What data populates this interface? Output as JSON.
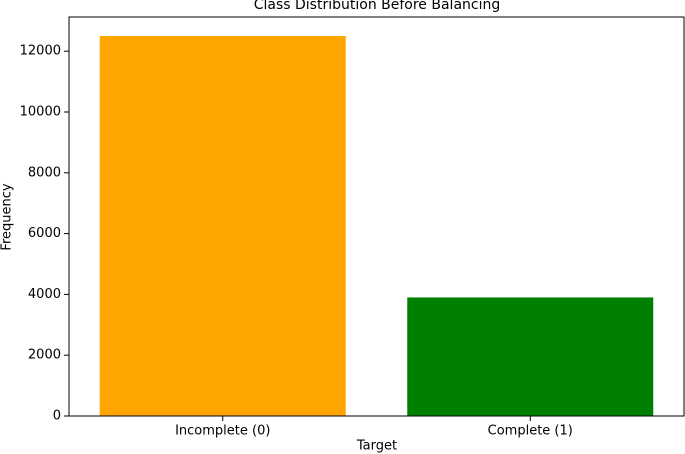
{
  "chart_data": {
    "type": "bar",
    "title": "Class Distribution Before Balancing",
    "x_label": "Target",
    "y_label": "Frequency",
    "categories": [
      "Incomplete (0)",
      "Complete (1)"
    ],
    "values": [
      12500,
      3900
    ],
    "colors": [
      "#ffa500",
      "#008000"
    ],
    "ylim": [
      0,
      13125
    ],
    "yticks": [
      0,
      2000,
      4000,
      6000,
      8000,
      10000,
      12000
    ],
    "xlim": [
      -0.5,
      1.5
    ],
    "grid": false
  }
}
